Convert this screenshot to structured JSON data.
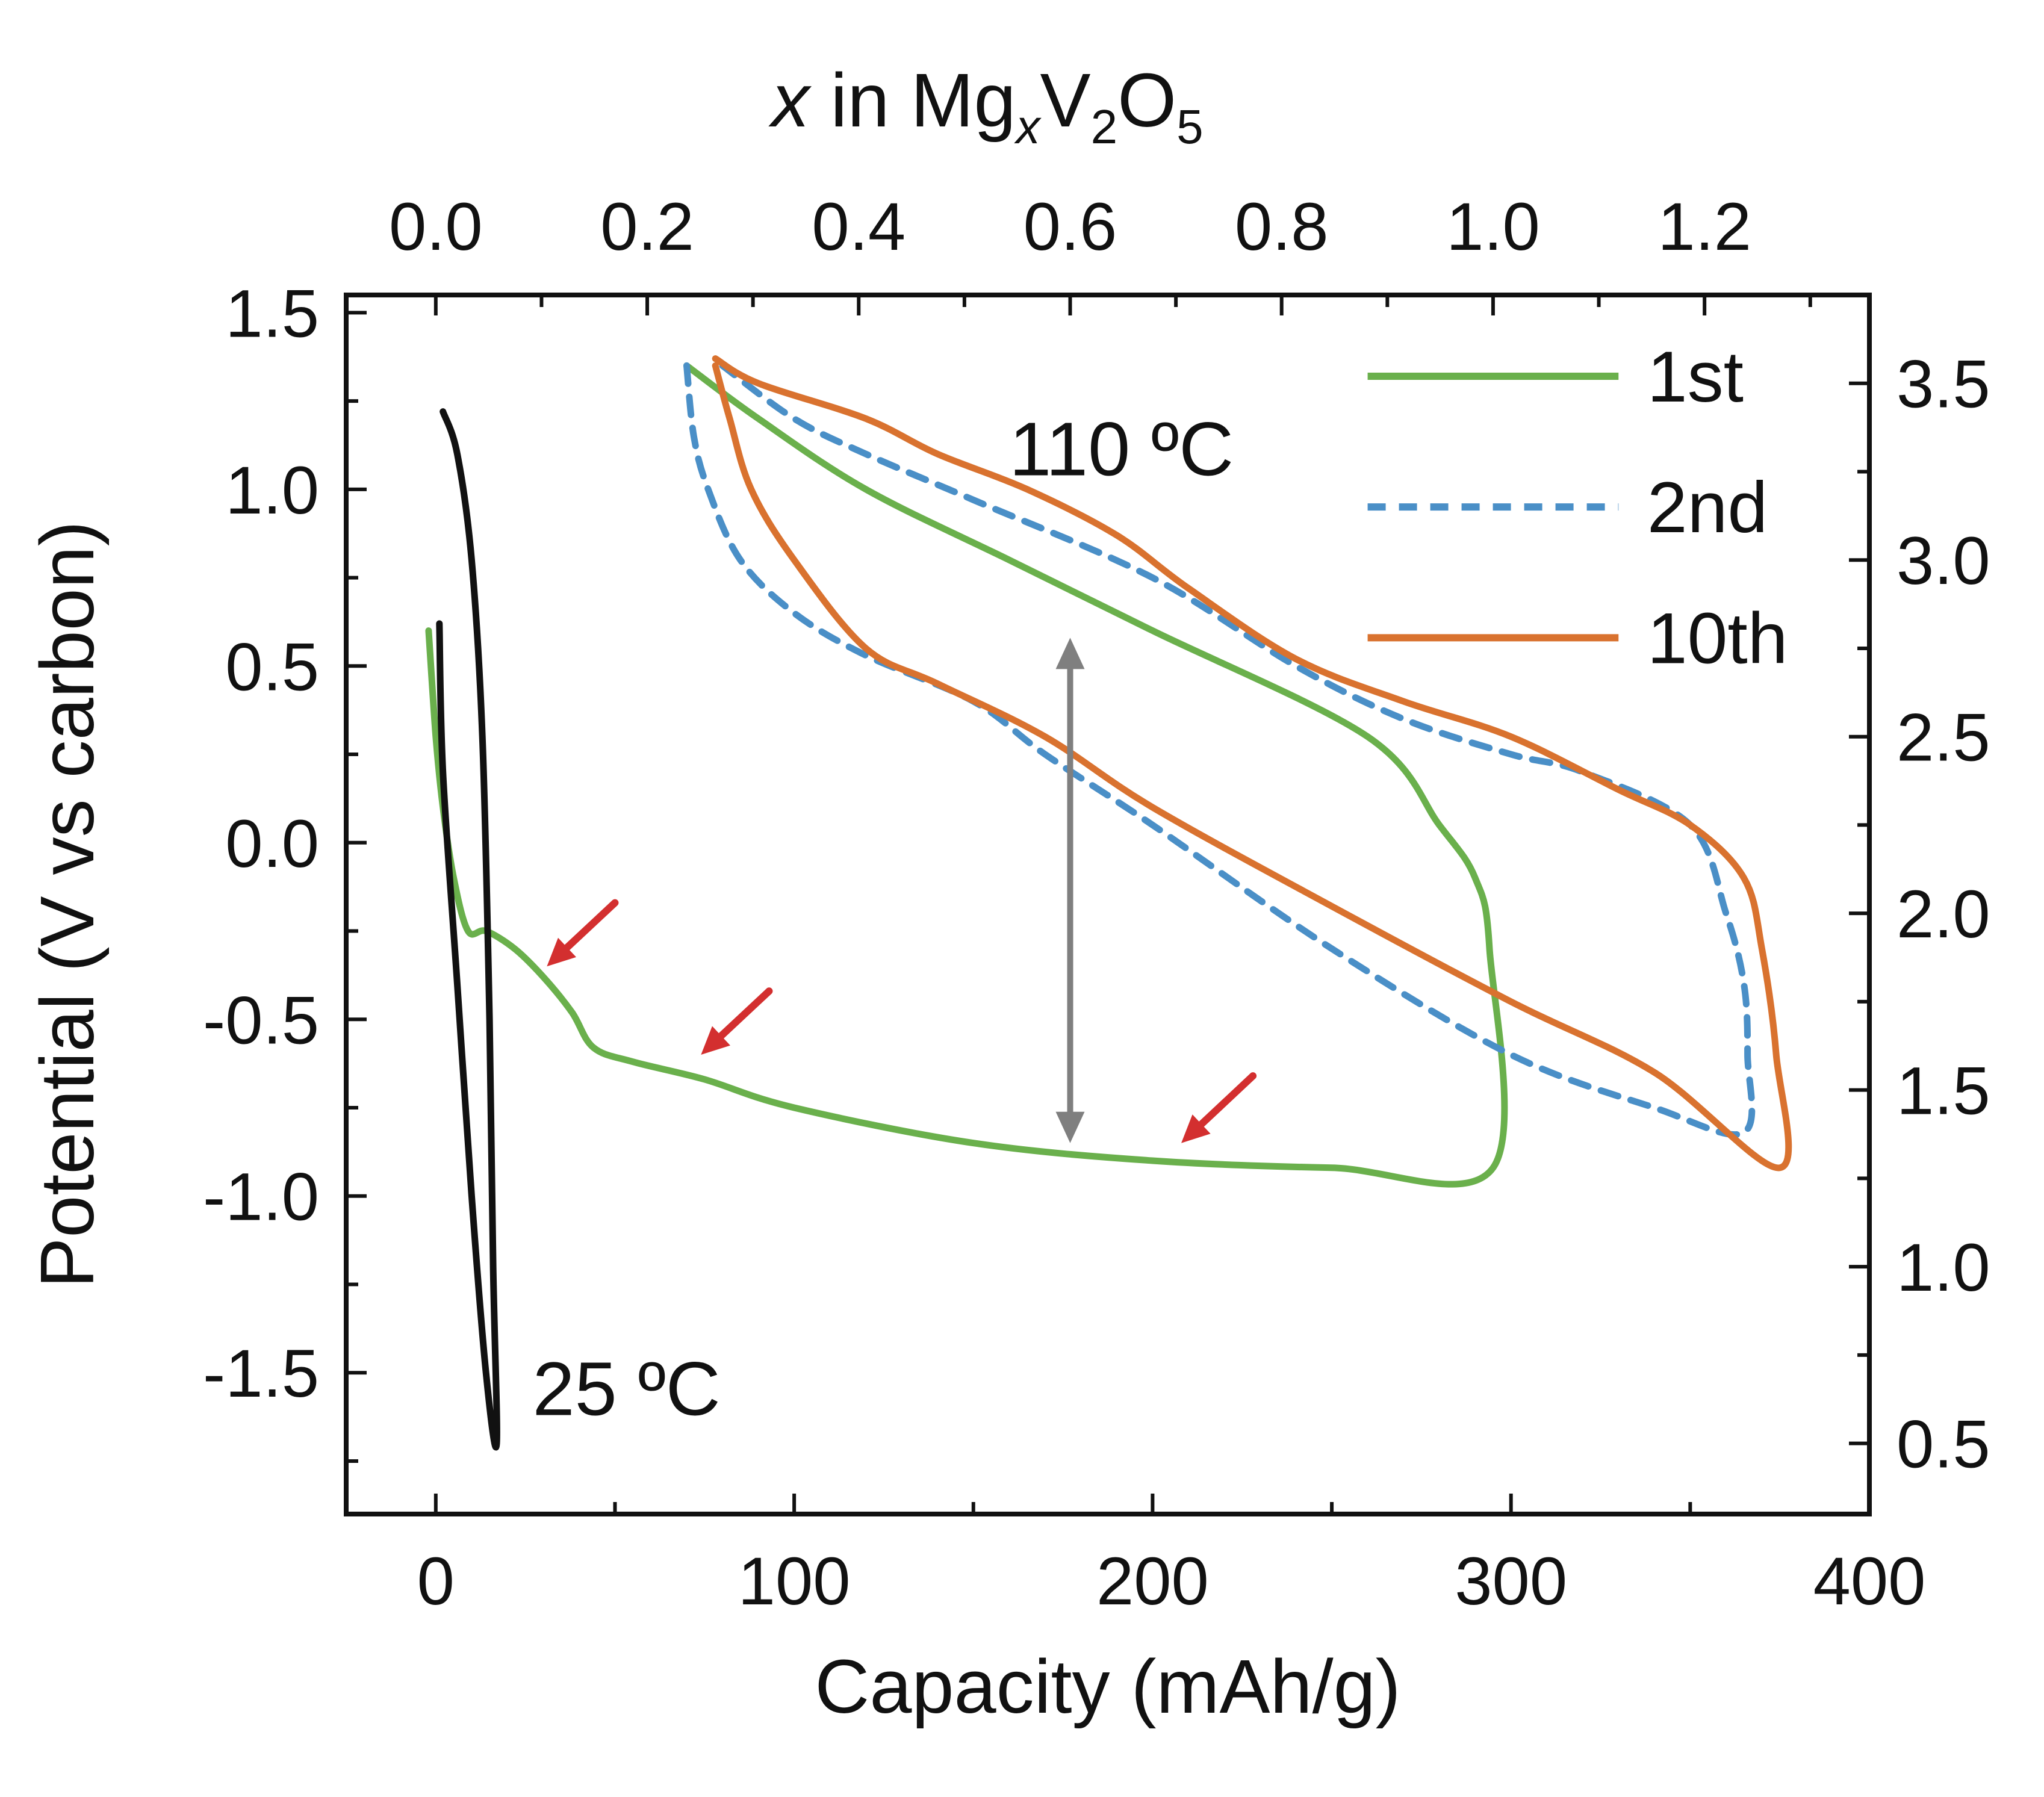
{
  "chart_data": {
    "type": "line",
    "xlabel": "Capacity (mAh/g)",
    "ylabel": "Potential (V vs carbon)",
    "xlim": [
      -25,
      400
    ],
    "ylim": [
      -1.9,
      1.55
    ],
    "x_ticks": [
      0,
      100,
      200,
      300,
      400
    ],
    "x_tick_labels": [
      "0",
      "100",
      "200",
      "300",
      "400"
    ],
    "y_ticks": [
      -1.5,
      -1.0,
      -0.5,
      0.0,
      0.5,
      1.0,
      1.5
    ],
    "y_tick_labels": [
      "-1.5",
      "-1.0",
      "-0.5",
      "0.0",
      "0.5",
      "1.0",
      "1.5"
    ],
    "top_axis": {
      "label_parts": {
        "x": "x",
        "in": " in ",
        "mg": "Mg",
        "sub_x": "x",
        "v": "V",
        "sub_2": "2",
        "o": "O",
        "sub_5": "5"
      },
      "ticks": [
        0.0,
        0.2,
        0.4,
        0.6,
        0.8,
        1.0,
        1.2
      ],
      "tick_labels": [
        "0.0",
        "0.2",
        "0.4",
        "0.6",
        "0.8",
        "1.0",
        "1.2"
      ],
      "capacity_per_unit_x": 295
    },
    "right_axis": {
      "ticks": [
        0.5,
        1.0,
        1.5,
        2.0,
        2.5,
        3.0,
        3.5
      ],
      "tick_labels": [
        "0.5",
        "1.0",
        "1.5",
        "2.0",
        "2.5",
        "3.0",
        "3.5"
      ],
      "offset_from_left": 2.2
    },
    "annotations": {
      "temp_high": "110 ºC",
      "temp_low": "25 ºC"
    },
    "legend": {
      "position": "top-right",
      "entries": [
        {
          "label": "1st",
          "color": "#6ab04c",
          "dash": "solid"
        },
        {
          "label": "2nd",
          "color": "#4a8fc7",
          "dash": "dashed"
        },
        {
          "label": "10th",
          "color": "#d9722f",
          "dash": "solid"
        }
      ]
    },
    "series": [
      {
        "name": "25 ºC",
        "color": "#111111",
        "points": [
          [
            2,
            1.22
          ],
          [
            6,
            1.1
          ],
          [
            10,
            0.8
          ],
          [
            13,
            0.3
          ],
          [
            15,
            -0.5
          ],
          [
            16,
            -1.2
          ],
          [
            17,
            -1.7
          ],
          [
            14,
            -1.5
          ],
          [
            10,
            -1.0
          ],
          [
            6,
            -0.4
          ],
          [
            2,
            0.2
          ],
          [
            1,
            0.62
          ]
        ]
      },
      {
        "name": "1st",
        "color": "#6ab04c",
        "points": [
          [
            -2,
            0.6
          ],
          [
            0,
            0.3
          ],
          [
            2,
            0.1
          ],
          [
            5,
            -0.1
          ],
          [
            9,
            -0.25
          ],
          [
            14,
            -0.25
          ],
          [
            22,
            -0.3
          ],
          [
            30,
            -0.38
          ],
          [
            38,
            -0.48
          ],
          [
            44,
            -0.58
          ],
          [
            55,
            -0.62
          ],
          [
            75,
            -0.67
          ],
          [
            100,
            -0.75
          ],
          [
            150,
            -0.85
          ],
          [
            200,
            -0.9
          ],
          [
            250,
            -0.92
          ],
          [
            295,
            -0.92
          ],
          [
            294,
            -0.3
          ],
          [
            290,
            -0.1
          ],
          [
            280,
            0.05
          ],
          [
            260,
            0.3
          ],
          [
            200,
            0.6
          ],
          [
            160,
            0.8
          ],
          [
            120,
            1.0
          ],
          [
            90,
            1.2
          ],
          [
            70,
            1.35
          ]
        ]
      },
      {
        "name": "2nd",
        "color": "#4a8fc7",
        "points": [
          [
            70,
            1.35
          ],
          [
            72,
            1.15
          ],
          [
            76,
            1.0
          ],
          [
            85,
            0.8
          ],
          [
            100,
            0.65
          ],
          [
            120,
            0.53
          ],
          [
            150,
            0.4
          ],
          [
            170,
            0.25
          ],
          [
            200,
            0.05
          ],
          [
            250,
            -0.3
          ],
          [
            300,
            -0.6
          ],
          [
            340,
            -0.75
          ],
          [
            365,
            -0.82
          ],
          [
            366,
            -0.6
          ],
          [
            365,
            -0.4
          ],
          [
            360,
            -0.2
          ],
          [
            350,
            0.05
          ],
          [
            320,
            0.2
          ],
          [
            300,
            0.25
          ],
          [
            270,
            0.35
          ],
          [
            240,
            0.5
          ],
          [
            200,
            0.75
          ],
          [
            150,
            0.97
          ],
          [
            120,
            1.1
          ],
          [
            100,
            1.2
          ],
          [
            80,
            1.35
          ]
        ]
      },
      {
        "name": "10th",
        "color": "#d9722f",
        "points": [
          [
            78,
            1.35
          ],
          [
            82,
            1.2
          ],
          [
            88,
            1.0
          ],
          [
            100,
            0.8
          ],
          [
            120,
            0.55
          ],
          [
            140,
            0.45
          ],
          [
            170,
            0.3
          ],
          [
            200,
            0.1
          ],
          [
            250,
            -0.18
          ],
          [
            300,
            -0.45
          ],
          [
            340,
            -0.65
          ],
          [
            375,
            -0.92
          ],
          [
            374,
            -0.6
          ],
          [
            370,
            -0.3
          ],
          [
            365,
            -0.1
          ],
          [
            350,
            0.05
          ],
          [
            330,
            0.15
          ],
          [
            300,
            0.3
          ],
          [
            270,
            0.4
          ],
          [
            240,
            0.52
          ],
          [
            210,
            0.72
          ],
          [
            190,
            0.87
          ],
          [
            165,
            1.0
          ],
          [
            140,
            1.1
          ],
          [
            120,
            1.2
          ],
          [
            90,
            1.3
          ],
          [
            78,
            1.37
          ]
        ]
      }
    ]
  }
}
